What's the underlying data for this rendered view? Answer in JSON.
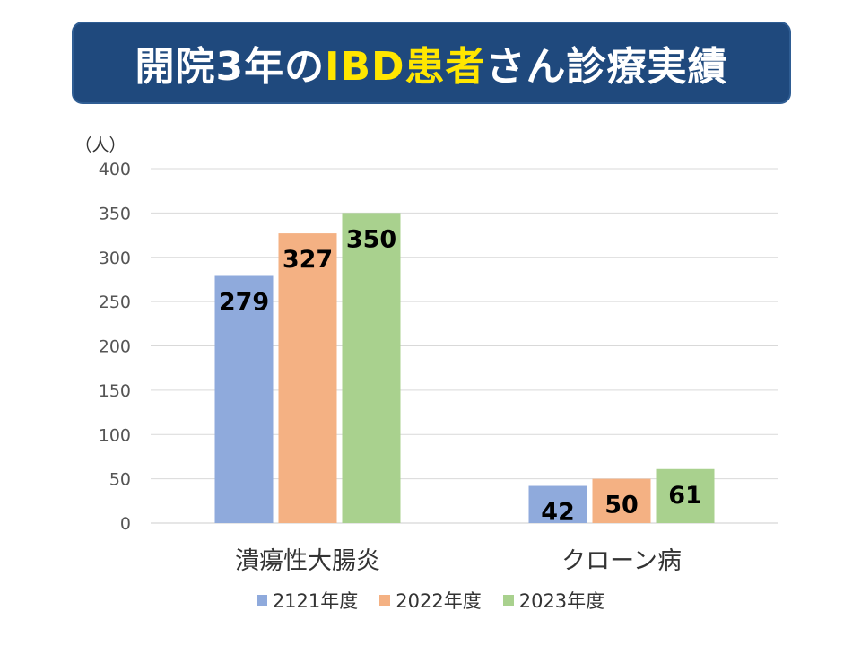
{
  "title": {
    "part1": "開院3年の",
    "part2": "IBD患者",
    "part3": "さん診療実績"
  },
  "chart_data": {
    "type": "bar",
    "unit_label": "（人）",
    "categories": [
      "潰瘍性大腸炎",
      "クローン病"
    ],
    "series": [
      {
        "name": "2121年度",
        "color": "#8faadc",
        "values": [
          279,
          42
        ]
      },
      {
        "name": "2022年度",
        "color": "#f4b183",
        "values": [
          327,
          50
        ]
      },
      {
        "name": "2023年度",
        "color": "#a9d18e",
        "values": [
          350,
          61
        ]
      }
    ],
    "ylim": [
      0,
      400
    ],
    "yticks": [
      0,
      50,
      100,
      150,
      200,
      250,
      300,
      350,
      400
    ],
    "grid": true,
    "legend_position": "bottom",
    "data_label_color": "#000000"
  }
}
